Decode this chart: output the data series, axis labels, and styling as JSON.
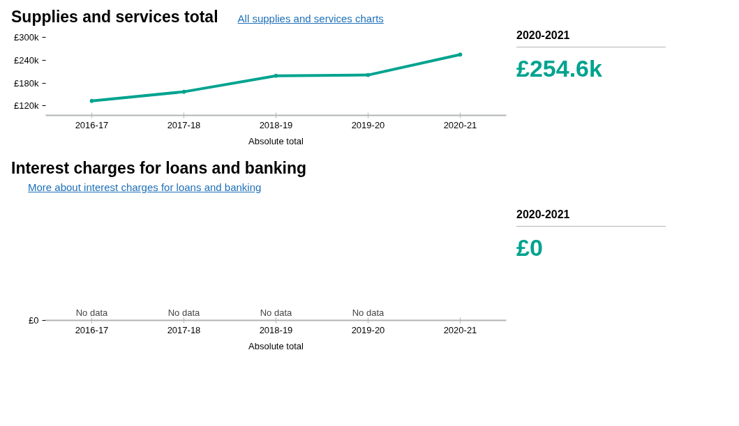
{
  "chart_data": [
    {
      "type": "line",
      "title": "Supplies and services total",
      "xlabel": "Absolute total",
      "annotations": [
        "All supplies and services charts"
      ],
      "categories": [
        "2016-17",
        "2017-18",
        "2018-19",
        "2019-20",
        "2020-21"
      ],
      "series": [
        {
          "color": "#00a38f",
          "values": [
            133,
            157,
            199,
            201,
            254.6
          ]
        }
      ],
      "ylim": [
        95,
        300
      ],
      "yticks": [
        {
          "value": 120,
          "label": "£120k"
        },
        {
          "value": 180,
          "label": "£180k"
        },
        {
          "value": 240,
          "label": "£240k"
        },
        {
          "value": 300,
          "label": "£300k"
        }
      ],
      "grid": false,
      "marker": "circle",
      "line_style": "solid"
    },
    {
      "type": "other",
      "title": "2020-2021",
      "annotations": [
        "£254.6k"
      ]
    },
    {
      "type": "other",
      "title": "Interest charges for loans and banking",
      "xlabel": "Absolute total",
      "annotations": [
        "More about interest charges for loans and banking",
        "£0",
        {
          "text": "No data",
          "x": "2016-17"
        },
        {
          "text": "No data",
          "x": "2017-18"
        },
        {
          "text": "No data",
          "x": "2018-19"
        },
        {
          "text": "No data",
          "x": "2019-20"
        }
      ],
      "categories": [
        "2016-17",
        "2017-18",
        "2018-19",
        "2019-20",
        "2020-21"
      ]
    },
    {
      "type": "other",
      "title": "2020-2021",
      "annotations": [
        "£0"
      ]
    }
  ]
}
